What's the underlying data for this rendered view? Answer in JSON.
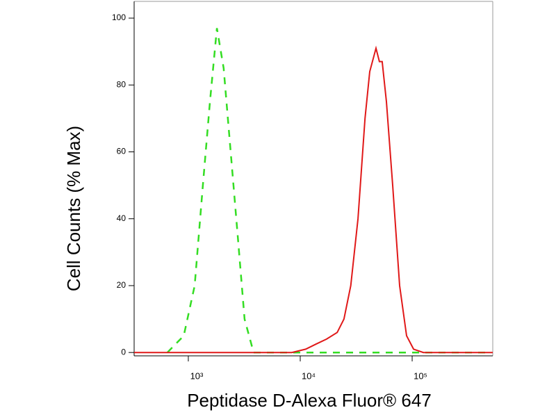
{
  "chart_data": {
    "type": "line",
    "xlabel": "Peptidase D-Alexa Fluor® 647",
    "ylabel": "Cell Counts (% Max)",
    "xscale": "log",
    "xlim": [
      328,
      525000
    ],
    "ylim": [
      -1,
      105
    ],
    "xticks": [
      {
        "value": 1000,
        "label": "10³"
      },
      {
        "value": 10000,
        "label": "10⁴"
      },
      {
        "value": 100000,
        "label": "10⁵"
      }
    ],
    "yticks": [
      0,
      20,
      40,
      60,
      80,
      100
    ],
    "series": [
      {
        "color": "#33dd22",
        "dash": true,
        "x": [
          650,
          910,
          1140,
          1350,
          1560,
          1800,
          2070,
          2390,
          2760,
          3180,
          3830,
          100000,
          500000
        ],
        "values": [
          0,
          5,
          20,
          50,
          75,
          97,
          85,
          60,
          35,
          10,
          0,
          0,
          0
        ]
      },
      {
        "color": "#e01818",
        "dash": false,
        "x": [
          328,
          8400,
          11200,
          13800,
          17200,
          21400,
          24600,
          28300,
          32800,
          37900,
          41800,
          47500,
          51000,
          54000,
          58900,
          67000,
          77300,
          89200,
          103000,
          126000,
          525000
        ],
        "values": [
          0,
          0,
          1,
          2.5,
          4,
          6,
          10,
          20,
          40,
          70,
          84,
          91,
          87,
          87,
          75,
          50,
          20,
          5,
          1,
          0,
          0
        ]
      }
    ]
  }
}
